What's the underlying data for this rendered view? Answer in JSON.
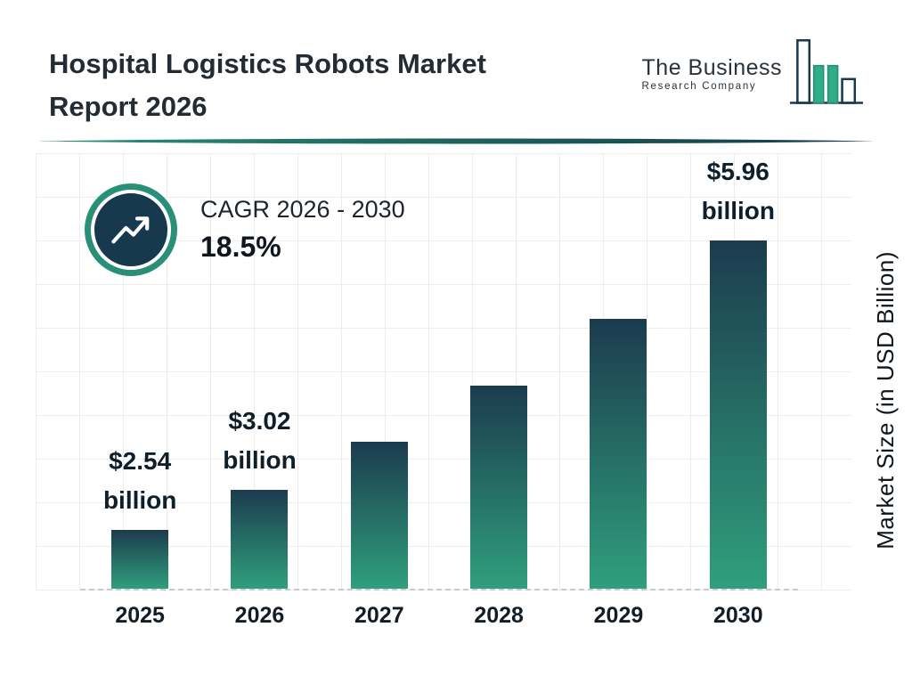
{
  "header": {
    "title_line1": "Hospital Logistics Robots Market",
    "title_line2": "Report 2026",
    "logo": {
      "name_line1": "The Business",
      "name_line2": "Research Company"
    }
  },
  "cagr": {
    "label": "CAGR 2026 - 2030",
    "value": "18.5%"
  },
  "colors": {
    "accent_teal": "#2a8f78",
    "dark_navy": "#16394e",
    "grid_gray": "#ececec"
  },
  "chart_data": {
    "type": "bar",
    "title": "Hospital Logistics Robots Market Report 2026",
    "categories": [
      "2025",
      "2026",
      "2027",
      "2028",
      "2029",
      "2030"
    ],
    "values": [
      2.54,
      3.02,
      3.58,
      4.24,
      5.03,
      5.96
    ],
    "value_labels": [
      "$2.54 billion",
      "$3.02 billion",
      null,
      null,
      null,
      "$5.96 billion"
    ],
    "xlabel": "",
    "ylabel": "Market Size (in USD Billion)",
    "ylim": [
      1.85,
      6.9
    ],
    "grid": true,
    "legend": false,
    "bar_gradient": [
      "#1c3b4e",
      "#2f9f7c"
    ]
  }
}
